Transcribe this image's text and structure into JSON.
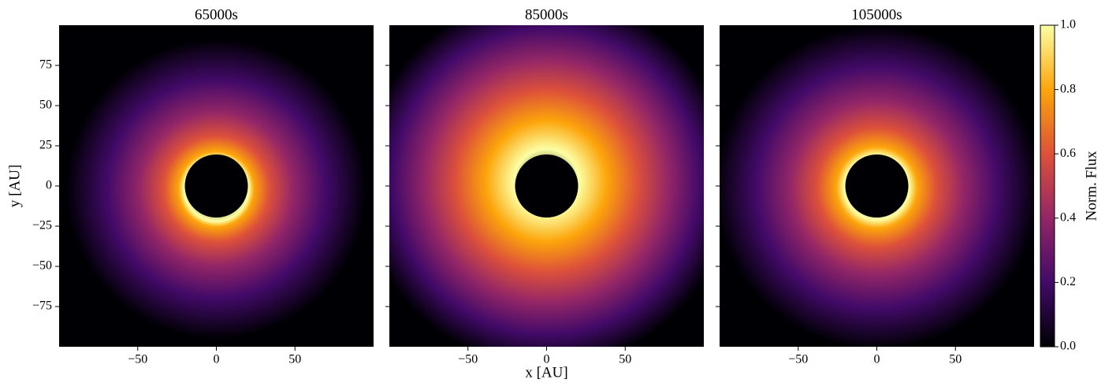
{
  "chart_data": [
    {
      "type": "heatmap",
      "title": "65000s",
      "ylabel": "y [AU]",
      "xlim": [
        -100,
        100
      ],
      "ylim": [
        -100,
        100
      ],
      "xticks": [
        {
          "value": -50,
          "label": "−50"
        },
        0,
        50
      ],
      "yticks": [
        {
          "value": -75,
          "label": "−75"
        },
        {
          "value": -50,
          "label": "−50"
        },
        {
          "value": -25,
          "label": "−25"
        },
        0,
        25,
        50,
        75
      ],
      "colormap": [
        "#000004",
        "#420a68",
        "#932667",
        "#dd513a",
        "#fca50a",
        "#fcffa4"
      ]
    },
    {
      "type": "heatmap",
      "title": "85000s",
      "xlabel": "x [AU]",
      "xlim": [
        -100,
        100
      ],
      "ylim": [
        -100,
        100
      ],
      "xticks": [
        {
          "value": -50,
          "label": "−50"
        },
        0,
        50
      ],
      "yticks": [
        -75,
        -50,
        -25,
        0,
        25,
        50,
        75
      ],
      "colormap": [
        "#000004",
        "#420a68",
        "#932667",
        "#dd513a",
        "#fca50a",
        "#fcffa4"
      ]
    },
    {
      "type": "heatmap",
      "title": "105000s",
      "xlim": [
        -100,
        100
      ],
      "ylim": [
        -100,
        100
      ],
      "xticks": [
        {
          "value": -50,
          "label": "−50"
        },
        0,
        50
      ],
      "yticks": [
        -75,
        -50,
        -25,
        0,
        25,
        50,
        75
      ],
      "colormap": [
        "#000004",
        "#420a68",
        "#932667",
        "#dd513a",
        "#fca50a",
        "#fcffa4"
      ],
      "colorbar": {
        "label": "Norm. Flux",
        "lim": [
          0,
          1
        ],
        "ticks": [
          {
            "value": 0,
            "label": "0.0"
          },
          {
            "value": 0.2,
            "label": "0.2"
          },
          {
            "value": 0.4,
            "label": "0.4"
          },
          {
            "value": 0.6,
            "label": "0.6"
          },
          {
            "value": 0.8,
            "label": "0.8"
          },
          {
            "value": 1,
            "label": "1.0"
          }
        ]
      }
    }
  ]
}
